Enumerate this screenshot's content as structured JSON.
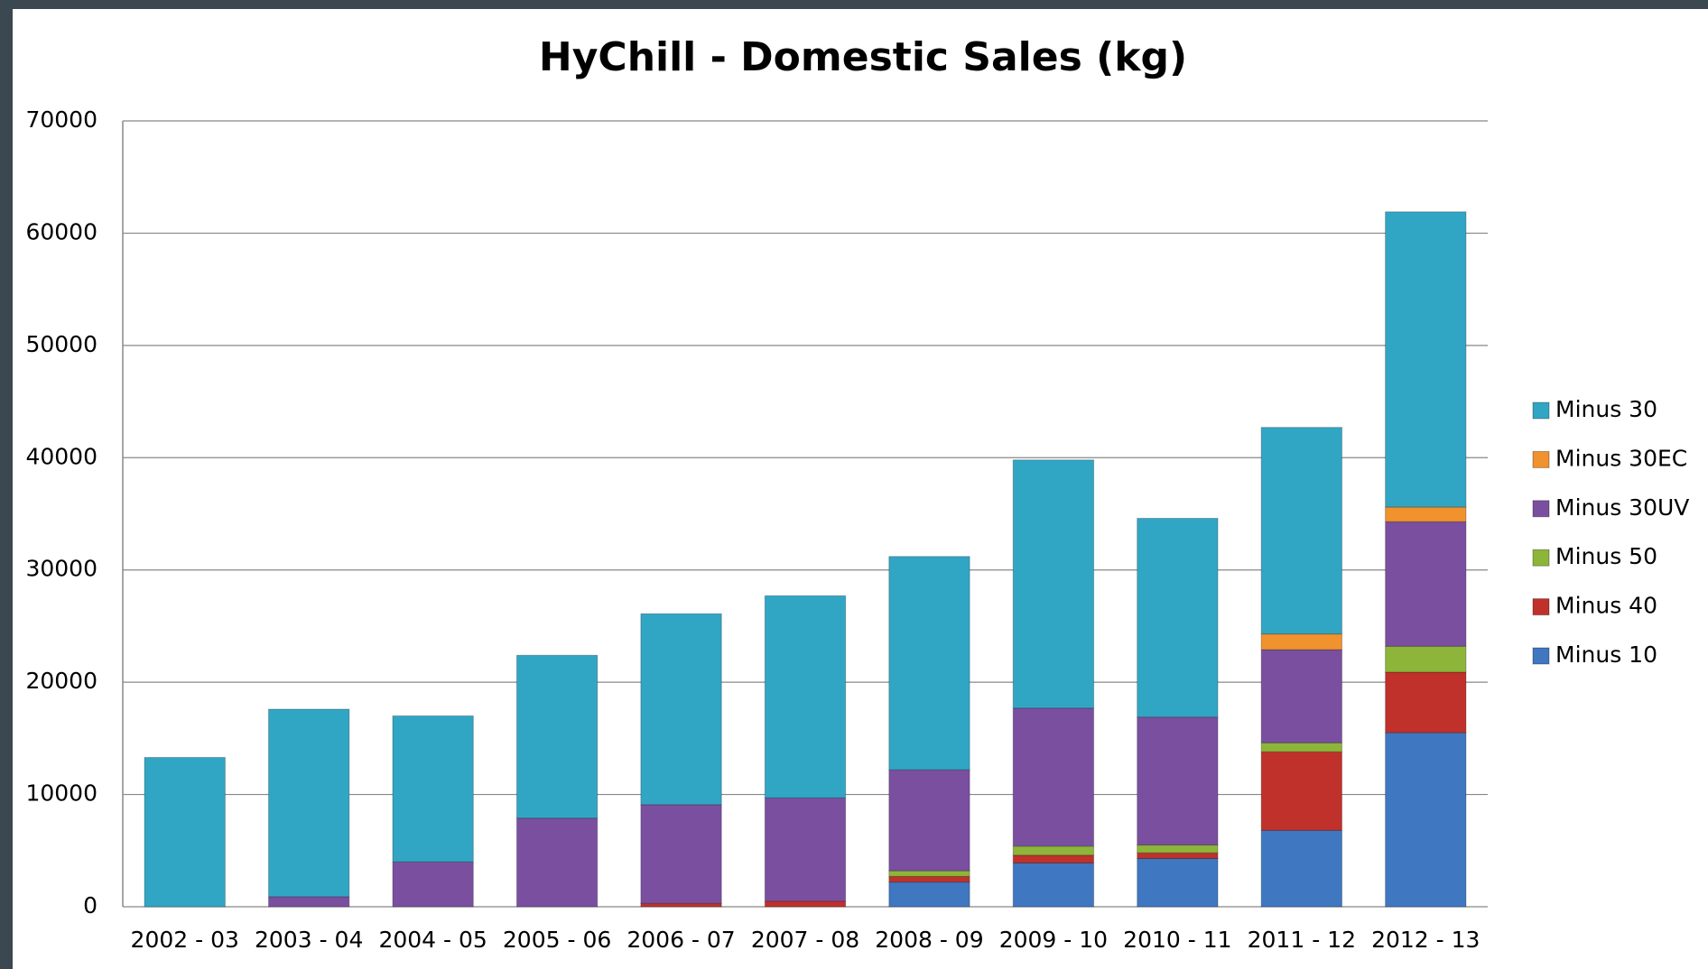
{
  "chart_data": {
    "type": "stacked_bar",
    "title": "HyChill - Domestic Sales (kg)",
    "categories": [
      "2002 - 03",
      "2003 - 04",
      "2004 - 05",
      "2005 - 06",
      "2006 - 07",
      "2007 - 08",
      "2008 - 09",
      "2009 - 10",
      "2010 - 11",
      "2011 - 12",
      "2012 - 13"
    ],
    "series": [
      {
        "name": "Minus 10",
        "color": "#3f77c0",
        "values": [
          0,
          0,
          0,
          0,
          0,
          0,
          2200,
          3900,
          4300,
          6800,
          15500
        ]
      },
      {
        "name": "Minus 40",
        "color": "#c0312b",
        "values": [
          0,
          0,
          0,
          0,
          300,
          500,
          500,
          700,
          500,
          7000,
          5400
        ]
      },
      {
        "name": "Minus 50",
        "color": "#8cb53a",
        "values": [
          0,
          0,
          0,
          0,
          0,
          0,
          500,
          800,
          700,
          800,
          2300
        ]
      },
      {
        "name": "Minus 30UV",
        "color": "#7a4fa0",
        "values": [
          0,
          900,
          4000,
          7900,
          8800,
          9200,
          9000,
          12300,
          11400,
          8300,
          11100
        ]
      },
      {
        "name": "Minus 30EC",
        "color": "#f0922e",
        "values": [
          0,
          0,
          0,
          0,
          0,
          0,
          0,
          0,
          0,
          1400,
          1300
        ]
      },
      {
        "name": "Minus 30",
        "color": "#31a6c4",
        "values": [
          13300,
          16700,
          13000,
          14500,
          17000,
          18000,
          19000,
          22100,
          17700,
          18400,
          26300
        ]
      }
    ],
    "ylim": [
      0,
      70000
    ],
    "yticks": [
      0,
      10000,
      20000,
      30000,
      40000,
      50000,
      60000,
      70000
    ],
    "grid": true,
    "legend": "right"
  }
}
